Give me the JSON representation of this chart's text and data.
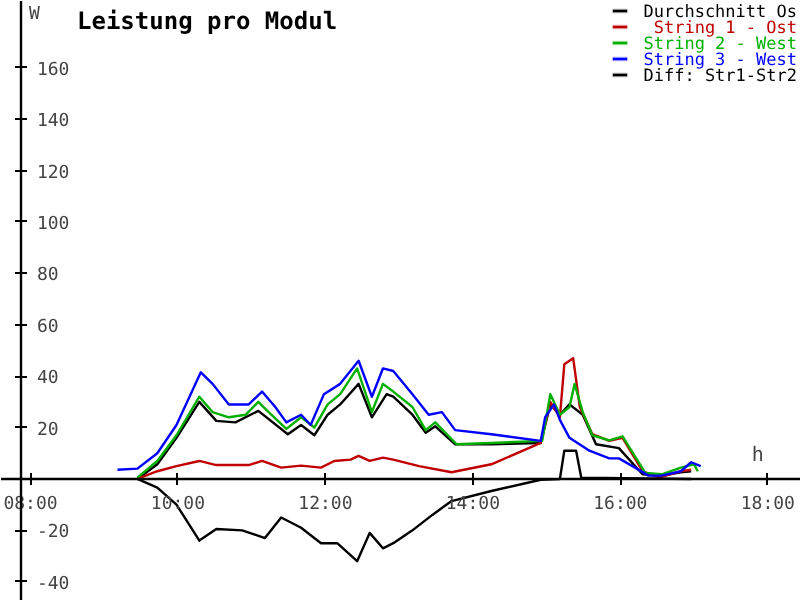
{
  "chart_data": {
    "type": "line",
    "title": "Leistung pro Modul",
    "xlabel": "h",
    "ylabel": "W",
    "xlim": [
      7.6,
      18.45
    ],
    "ylim": [
      -47.5,
      186
    ],
    "xticks": [
      {
        "value": 8,
        "label": "08:00"
      },
      {
        "value": 10,
        "label": "10:00"
      },
      {
        "value": 12,
        "label": "12:00"
      },
      {
        "value": 14,
        "label": "14:00"
      },
      {
        "value": 16,
        "label": "16:00"
      },
      {
        "value": 18,
        "label": "18:00"
      }
    ],
    "yticks": [
      -40,
      -20,
      {
        "value": 0,
        "label": null
      },
      20,
      40,
      60,
      80,
      100,
      120,
      140,
      160
    ],
    "grid": false,
    "legend": "top right",
    "marker": "none",
    "line_style": "solid",
    "series": [
      {
        "name": "Durchschnitt Os",
        "color": "#000000",
        "x": [
          9.45,
          9.72,
          9.98,
          10.29,
          10.52,
          10.78,
          11.09,
          11.49,
          11.67,
          11.85,
          12.03,
          12.2,
          12.45,
          12.63,
          12.83,
          12.92,
          13.18,
          13.36,
          13.49,
          13.76,
          14.25,
          14.92,
          15.05,
          15.18,
          15.31,
          15.49,
          15.67,
          15.98,
          16.3,
          16.56,
          16.82,
          16.96
        ],
        "values": [
          0,
          5.7,
          16,
          30,
          22.6,
          22,
          26.5,
          17.4,
          21,
          17,
          25,
          29,
          37,
          24,
          33,
          32,
          25,
          18,
          20.5,
          13.5,
          13.5,
          14,
          29,
          25,
          29,
          25,
          13.5,
          12,
          1.8,
          1.3,
          2.6,
          3
        ]
      },
      {
        "name": "String 1 - Ost",
        "color": "#c00000",
        "x": [
          9.45,
          9.72,
          9.98,
          10.29,
          10.52,
          10.96,
          11.14,
          11.4,
          11.67,
          11.94,
          12.12,
          12.34,
          12.45,
          12.6,
          12.78,
          12.92,
          13.27,
          13.71,
          14.25,
          14.92,
          15.05,
          15.18,
          15.24,
          15.36,
          15.45,
          15.62,
          15.85,
          16.03,
          16.3,
          16.52,
          16.82,
          16.96
        ],
        "values": [
          0,
          3,
          5,
          7,
          5.4,
          5.4,
          7,
          4.4,
          5.2,
          4.4,
          7,
          7.5,
          9,
          7,
          8.3,
          7.5,
          5,
          2.6,
          5.7,
          14,
          30,
          24,
          44.6,
          47,
          28,
          17.4,
          14.8,
          16,
          3,
          0.5,
          3,
          3.6
        ]
      },
      {
        "name": "String 2 - West",
        "color": "#00b000",
        "x": [
          9.45,
          9.72,
          9.98,
          10.29,
          10.47,
          10.69,
          10.92,
          11.09,
          11.23,
          11.47,
          11.67,
          11.85,
          12.03,
          12.2,
          12.43,
          12.63,
          12.78,
          12.92,
          13.18,
          13.36,
          13.49,
          13.78,
          14.25,
          14.94,
          15.05,
          15.18,
          15.31,
          15.38,
          15.49,
          15.62,
          15.85,
          16.03,
          16.34,
          16.56,
          16.82,
          17.0,
          17.05
        ],
        "values": [
          0.5,
          7,
          17,
          32,
          26,
          24,
          25,
          30,
          26,
          19.5,
          24,
          20,
          29,
          33,
          43,
          26,
          37,
          34,
          28,
          19,
          22,
          13.5,
          14,
          14.8,
          33,
          25,
          28,
          37,
          26,
          17,
          15,
          16.6,
          2.3,
          1.8,
          4.4,
          5.7,
          3
        ]
      },
      {
        "name": "String 3 - West",
        "color": "#0000ff",
        "x": [
          9.18,
          9.45,
          9.72,
          9.98,
          10.31,
          10.47,
          10.69,
          10.96,
          11.14,
          11.32,
          11.47,
          11.67,
          11.8,
          11.98,
          12.2,
          12.45,
          12.63,
          12.78,
          12.92,
          13.18,
          13.4,
          13.58,
          13.76,
          14.25,
          14.92,
          14.98,
          15.1,
          15.18,
          15.31,
          15.58,
          15.85,
          15.98,
          16.2,
          16.38,
          16.56,
          16.82,
          16.96,
          17.09
        ],
        "values": [
          3.6,
          4,
          10,
          21,
          41.5,
          37,
          29,
          29,
          34,
          28,
          22,
          25,
          21,
          33,
          37,
          46,
          32,
          43,
          42,
          33,
          25,
          26,
          19,
          17.4,
          14.8,
          24,
          29,
          23,
          16,
          11,
          8,
          8,
          4.4,
          1.3,
          1.3,
          3,
          6.5,
          5
        ]
      },
      {
        "name": "Diff: Str1-Str2",
        "color": "#000000",
        "x": [
          9.45,
          9.72,
          9.98,
          10.29,
          10.52,
          10.87,
          11.18,
          11.4,
          11.67,
          11.94,
          12.16,
          12.43,
          12.6,
          12.78,
          12.92,
          13.18,
          13.45,
          13.71,
          14.25,
          14.92,
          15.18,
          15.24,
          15.4,
          15.47,
          16.96
        ],
        "values": [
          0,
          -3.4,
          -10,
          -24,
          -19.5,
          -20,
          -23,
          -15,
          -19,
          -25,
          -25,
          -32,
          -21,
          -27,
          -25,
          -20,
          -14,
          -8.6,
          -4.7,
          -0.3,
          0,
          11,
          11,
          0.5,
          0
        ]
      }
    ]
  }
}
